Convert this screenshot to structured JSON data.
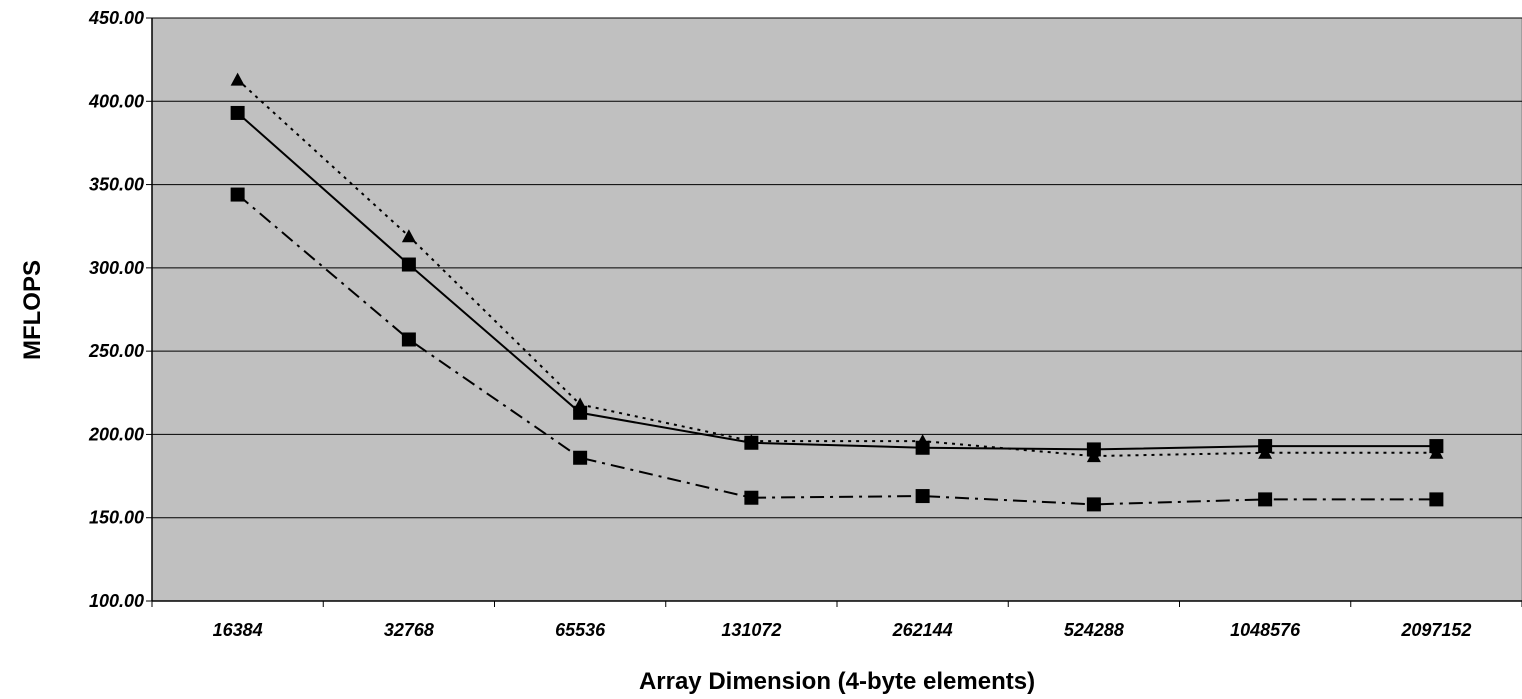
{
  "chart_data": {
    "type": "line",
    "title": "",
    "xlabel": "Array Dimension (4-byte elements)",
    "ylabel": "MFLOPS",
    "categories": [
      "16384",
      "32768",
      "65536",
      "131072",
      "262144",
      "524288",
      "1048576",
      "2097152"
    ],
    "ylim": [
      100,
      450
    ],
    "yticks": [
      "100.00",
      "150.00",
      "200.00",
      "250.00",
      "300.00",
      "350.00",
      "400.00",
      "450.00"
    ],
    "grid": true,
    "legend": "none",
    "plot_background": "#c0c0c0",
    "series": [
      {
        "style": "dotted",
        "marker": "triangle",
        "values": [
          413,
          319,
          218,
          196,
          196,
          187,
          189,
          189
        ]
      },
      {
        "style": "solid",
        "marker": "square",
        "values": [
          393,
          302,
          213,
          195,
          192,
          191,
          193,
          193
        ]
      },
      {
        "style": "dashdot",
        "marker": "square",
        "values": [
          344,
          257,
          186,
          162,
          163,
          158,
          161,
          161
        ]
      }
    ]
  }
}
